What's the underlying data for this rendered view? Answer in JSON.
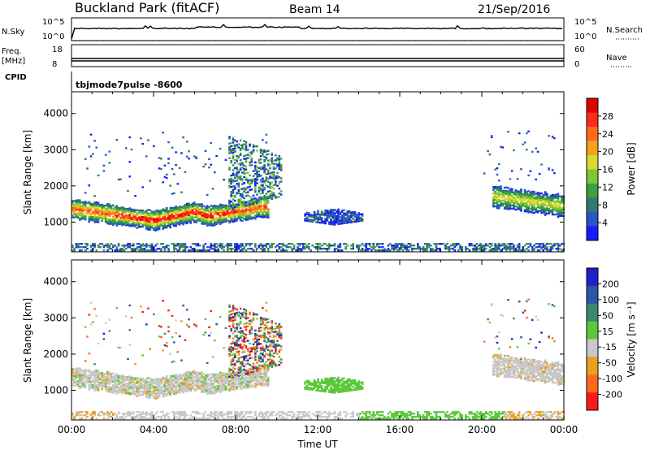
{
  "header": {
    "site": "Buckland Park (fitACF)",
    "beam": "Beam 14",
    "date": "21/Sep/2016"
  },
  "strips": {
    "nsky_label": "N.Sky",
    "nsky_ticks": [
      "10^5",
      "10^0"
    ],
    "nsearch_label": "N.Search",
    "nsearch_ticks": [
      "10^5",
      "10^0"
    ],
    "freq_label_1": "Freq.",
    "freq_label_2": "[MHz]",
    "freq_ticks": [
      "18",
      "8"
    ],
    "nave_label": "Nave",
    "nave_ticks": [
      "60",
      "0"
    ],
    "cpid_label": "CPID",
    "cpid_value": "tbjmode7pulse -8600"
  },
  "chart_data": [
    {
      "type": "heatmap",
      "name": "power-panel",
      "ylabel": "Slant Range [km]",
      "y_ticks": [
        1000,
        2000,
        3000,
        4000
      ],
      "ylim": [
        180,
        4600
      ],
      "x_ticks": [
        "00:00",
        "04:00",
        "08:00",
        "12:00",
        "16:00",
        "20:00",
        "00:00"
      ],
      "xlim_hours": [
        0,
        24
      ],
      "colorbar": {
        "label": "Power [dB]",
        "ticks": [
          "4",
          "8",
          "12",
          "16",
          "20",
          "24",
          "28"
        ],
        "colors": [
          "#1a1aff",
          "#2a55c8",
          "#2f7a6a",
          "#3f9e3f",
          "#79c83a",
          "#d9d930",
          "#f2a21e",
          "#ff6a1a",
          "#ff2a1a",
          "#e00000"
        ]
      },
      "echo_regions": [
        {
          "feature": "main-band",
          "hours": [
            0,
            9.6
          ],
          "range_km": [
            800,
            1700
          ]
        },
        {
          "feature": "arc",
          "hours": [
            7.6,
            10.2
          ],
          "range_km": [
            1300,
            3400
          ]
        },
        {
          "feature": "patch",
          "hours": [
            11.3,
            14.2
          ],
          "range_km": [
            950,
            1300
          ]
        },
        {
          "feature": "evening-band",
          "hours": [
            20.5,
            24
          ],
          "range_km": [
            1150,
            2100
          ]
        },
        {
          "feature": "ground-scatter",
          "hours": [
            0,
            24
          ],
          "range_km": [
            200,
            400
          ]
        }
      ]
    },
    {
      "type": "heatmap",
      "name": "velocity-panel",
      "ylabel": "Slant Range [km]",
      "y_ticks": [
        1000,
        2000,
        3000,
        4000
      ],
      "ylim": [
        180,
        4600
      ],
      "x_ticks": [
        "00:00",
        "04:00",
        "08:00",
        "12:00",
        "16:00",
        "20:00",
        "00:00"
      ],
      "xlim_hours": [
        0,
        24
      ],
      "xlabel": "Time UT",
      "colorbar": {
        "label": "Velocity [m s⁻¹]",
        "ticks": [
          "200",
          "100",
          "50",
          "15",
          "-15",
          "-50",
          "-100",
          "-200"
        ],
        "colors": [
          "#2020c8",
          "#2a55a8",
          "#3a8a6a",
          "#5ac83a",
          "#c8c8c8",
          "#e8a020",
          "#ff6a1a",
          "#ff1a1a"
        ]
      }
    }
  ]
}
